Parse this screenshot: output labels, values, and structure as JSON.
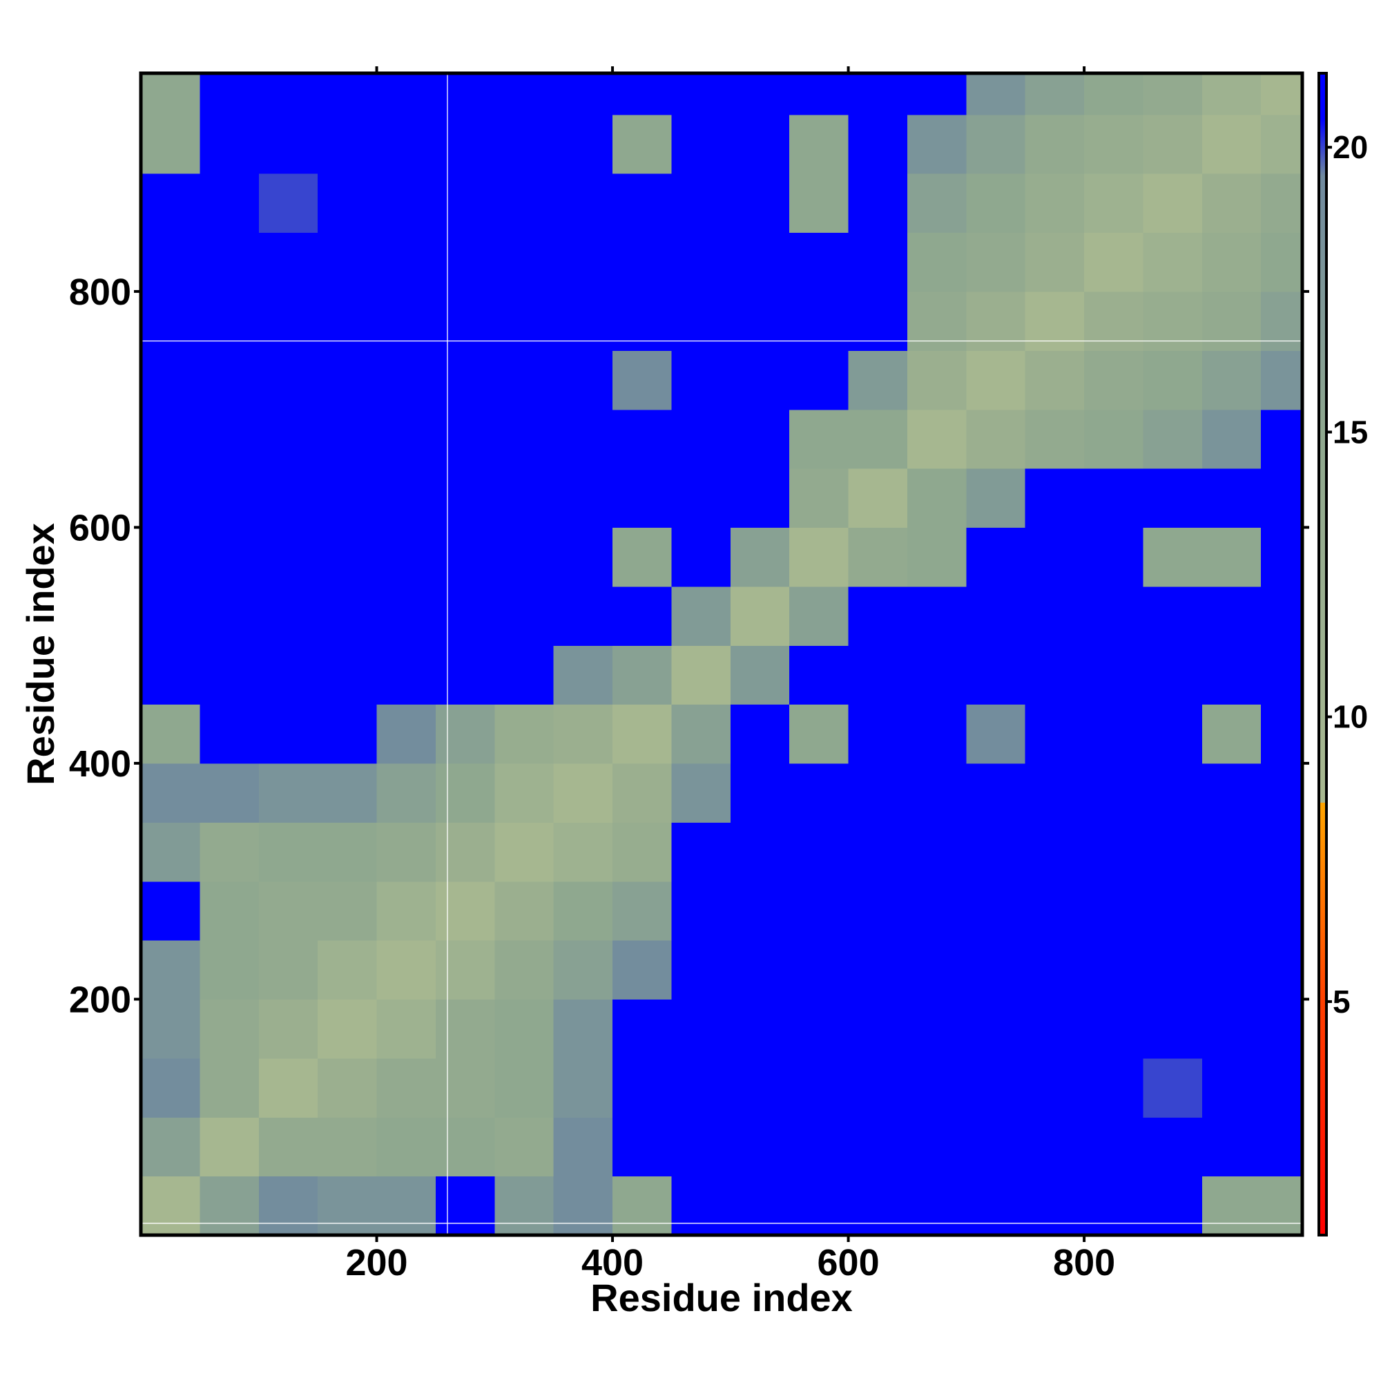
{
  "chart_data": {
    "type": "heatmap",
    "x_label": "Residue index",
    "y_label": "Residue index",
    "x_bins": [
      0,
      50,
      100,
      150,
      200,
      250,
      300,
      350,
      400,
      450,
      500,
      550,
      600,
      650,
      700,
      750,
      800,
      850,
      900,
      950,
      985
    ],
    "y_bins": [
      0,
      50,
      100,
      150,
      200,
      250,
      300,
      350,
      400,
      450,
      500,
      550,
      600,
      650,
      700,
      750,
      800,
      850,
      900,
      950,
      985
    ],
    "z": [
      [
        9,
        16,
        19,
        18,
        18,
        21,
        17,
        19,
        15,
        21,
        21,
        21,
        21,
        21,
        21,
        21,
        21,
        21,
        15,
        15
      ],
      [
        16,
        9,
        14,
        14,
        15,
        15,
        14,
        19,
        21,
        21,
        21,
        21,
        21,
        21,
        21,
        21,
        21,
        21,
        21,
        21
      ],
      [
        19,
        14,
        9,
        12,
        14,
        14,
        15,
        18,
        21,
        21,
        21,
        21,
        21,
        21,
        21,
        21,
        21,
        20,
        21,
        21
      ],
      [
        18,
        14,
        12,
        9,
        11,
        14,
        15,
        18,
        21,
        21,
        21,
        21,
        21,
        21,
        21,
        21,
        21,
        21,
        21,
        21
      ],
      [
        18,
        15,
        14,
        11,
        9,
        11,
        14,
        16,
        19,
        21,
        21,
        21,
        21,
        21,
        21,
        21,
        21,
        21,
        21,
        21
      ],
      [
        21,
        15,
        14,
        14,
        11,
        9,
        12,
        15,
        16,
        21,
        21,
        21,
        21,
        21,
        21,
        21,
        21,
        21,
        21,
        21
      ],
      [
        17,
        14,
        15,
        15,
        14,
        12,
        9,
        11,
        13,
        21,
        21,
        21,
        21,
        21,
        21,
        21,
        21,
        21,
        21,
        21
      ],
      [
        19,
        19,
        18,
        18,
        16,
        15,
        11,
        9,
        12,
        18,
        21,
        21,
        21,
        21,
        21,
        21,
        21,
        21,
        21,
        21
      ],
      [
        15,
        21,
        21,
        21,
        19,
        16,
        13,
        12,
        9,
        16,
        21,
        15,
        21,
        21,
        19,
        21,
        21,
        21,
        15,
        21
      ],
      [
        21,
        21,
        21,
        21,
        21,
        21,
        21,
        18,
        16,
        9,
        17,
        21,
        21,
        21,
        21,
        21,
        21,
        21,
        21,
        21
      ],
      [
        21,
        21,
        21,
        21,
        21,
        21,
        21,
        21,
        21,
        17,
        9,
        16,
        21,
        21,
        21,
        21,
        21,
        21,
        21,
        21
      ],
      [
        21,
        21,
        21,
        21,
        21,
        21,
        21,
        21,
        15,
        21,
        16,
        9,
        14,
        15,
        21,
        21,
        21,
        15,
        15,
        21
      ],
      [
        21,
        21,
        21,
        21,
        21,
        21,
        21,
        21,
        21,
        21,
        21,
        14,
        9,
        15,
        17,
        21,
        21,
        21,
        21,
        21
      ],
      [
        21,
        21,
        21,
        21,
        21,
        21,
        21,
        21,
        21,
        21,
        21,
        15,
        15,
        9,
        12,
        14,
        15,
        16,
        18,
        21
      ],
      [
        21,
        21,
        21,
        21,
        21,
        21,
        21,
        21,
        19,
        21,
        21,
        21,
        17,
        12,
        9,
        12,
        14,
        15,
        16,
        18
      ],
      [
        21,
        21,
        21,
        21,
        21,
        21,
        21,
        21,
        21,
        21,
        21,
        21,
        21,
        14,
        12,
        9,
        12,
        13,
        14,
        16
      ],
      [
        21,
        21,
        21,
        21,
        21,
        21,
        21,
        21,
        21,
        21,
        21,
        21,
        21,
        15,
        14,
        12,
        9,
        11,
        13,
        15
      ],
      [
        21,
        21,
        20,
        21,
        21,
        21,
        21,
        21,
        21,
        21,
        21,
        15,
        21,
        16,
        15,
        13,
        11,
        9,
        12,
        14
      ],
      [
        15,
        21,
        21,
        21,
        21,
        21,
        21,
        21,
        15,
        21,
        21,
        15,
        21,
        18,
        16,
        14,
        13,
        12,
        9,
        11
      ],
      [
        15,
        21,
        21,
        21,
        21,
        21,
        21,
        21,
        21,
        21,
        21,
        21,
        21,
        21,
        18,
        16,
        15,
        14,
        11,
        9
      ]
    ],
    "xlim": [
      0,
      985
    ],
    "ylim": [
      0,
      985
    ],
    "xticks": [
      200,
      400,
      600,
      800
    ],
    "yticks": [
      200,
      400,
      600,
      800
    ],
    "vlines": [
      260
    ],
    "hlines": [
      758,
      10
    ],
    "guide_color": "#ffffff",
    "colorbar": {
      "lim": [
        0.9,
        21.3
      ],
      "ticks": [
        5,
        10,
        15,
        20
      ],
      "stops": [
        {
          "value": 0.9,
          "color": "#ff0000"
        },
        {
          "value": 5,
          "color": "#ff4000"
        },
        {
          "value": 8.5,
          "color": "#ffa500"
        },
        {
          "value": 8.5,
          "color": "#a8b890"
        },
        {
          "value": 15,
          "color": "#8fa88f"
        },
        {
          "value": 19.5,
          "color": "#708a9f"
        },
        {
          "value": 20.5,
          "color": "#0000ff"
        },
        {
          "value": 21.3,
          "color": "#0000ff"
        }
      ]
    }
  }
}
